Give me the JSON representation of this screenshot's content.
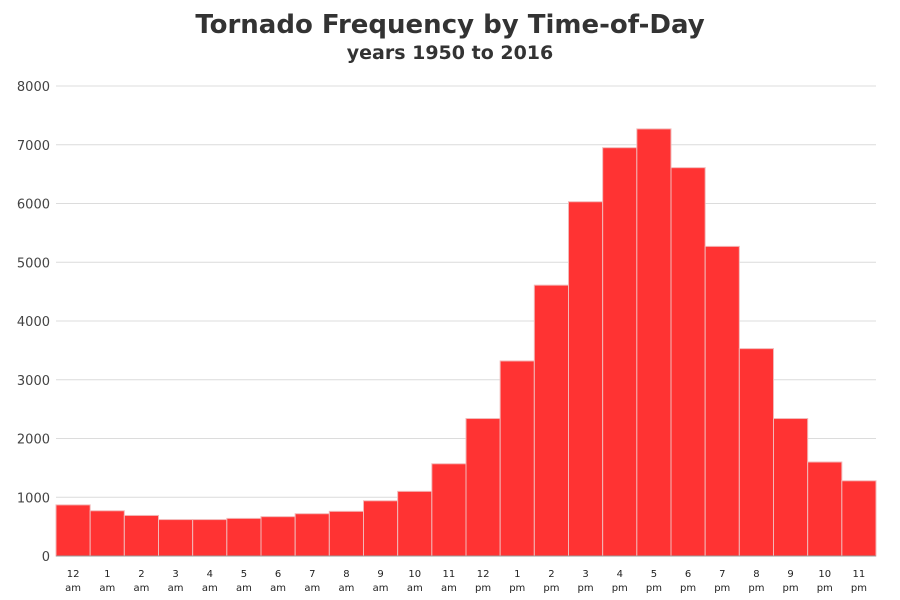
{
  "chart_data": {
    "type": "bar",
    "title": "Tornado Frequency by Time-of-Day",
    "subtitle": "years 1950 to 2016",
    "xlabel": "",
    "ylabel": "",
    "ylim": [
      0,
      8000
    ],
    "yticks": [
      0,
      1000,
      2000,
      3000,
      4000,
      5000,
      6000,
      7000,
      8000
    ],
    "grid": true,
    "bar_color": "#ff3333",
    "categories": [
      {
        "hour": "12",
        "period": "am"
      },
      {
        "hour": "1",
        "period": "am"
      },
      {
        "hour": "2",
        "period": "am"
      },
      {
        "hour": "3",
        "period": "am"
      },
      {
        "hour": "4",
        "period": "am"
      },
      {
        "hour": "5",
        "period": "am"
      },
      {
        "hour": "6",
        "period": "am"
      },
      {
        "hour": "7",
        "period": "am"
      },
      {
        "hour": "8",
        "period": "am"
      },
      {
        "hour": "9",
        "period": "am"
      },
      {
        "hour": "10",
        "period": "am"
      },
      {
        "hour": "11",
        "period": "am"
      },
      {
        "hour": "12",
        "period": "pm"
      },
      {
        "hour": "1",
        "period": "pm"
      },
      {
        "hour": "2",
        "period": "pm"
      },
      {
        "hour": "3",
        "period": "pm"
      },
      {
        "hour": "4",
        "period": "pm"
      },
      {
        "hour": "5",
        "period": "pm"
      },
      {
        "hour": "6",
        "period": "pm"
      },
      {
        "hour": "7",
        "period": "pm"
      },
      {
        "hour": "8",
        "period": "pm"
      },
      {
        "hour": "9",
        "period": "pm"
      },
      {
        "hour": "10",
        "period": "pm"
      },
      {
        "hour": "11",
        "period": "pm"
      }
    ],
    "values": [
      870,
      770,
      690,
      620,
      620,
      640,
      670,
      720,
      760,
      940,
      1100,
      1570,
      2340,
      3320,
      4610,
      6030,
      6950,
      7270,
      6610,
      5270,
      3530,
      2340,
      1600,
      1280
    ]
  }
}
